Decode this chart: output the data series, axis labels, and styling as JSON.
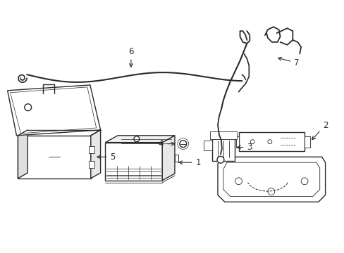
{
  "background_color": "#ffffff",
  "line_color": "#2a2a2a",
  "line_width": 1.0,
  "label_fontsize": 8.5,
  "figsize": [
    4.89,
    3.6
  ],
  "dpi": 100
}
